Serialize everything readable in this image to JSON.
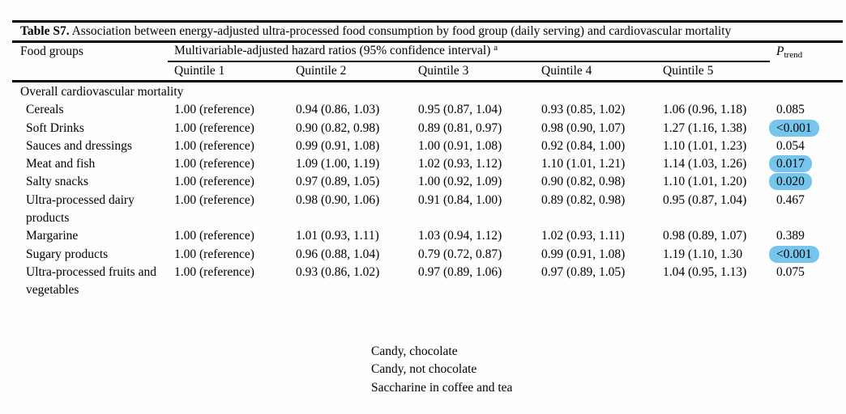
{
  "table": {
    "title_bold": "Table S7.",
    "title_rest": " Association between energy-adjusted ultra-processed food consumption by food group (daily serving) and cardiovascular mortality",
    "food_groups_header": "Food groups",
    "span_header": "Multivariable-adjusted hazard ratios (95% confidence interval)",
    "span_header_footnote_mark": "a",
    "p_label": "P",
    "p_sub": "trend",
    "quintiles": [
      "Quintile 1",
      "Quintile 2",
      "Quintile 3",
      "Quintile 4",
      "Quintile 5"
    ],
    "section": "Overall cardiovascular mortality",
    "highlight_color": "#76c5ec",
    "rows": [
      {
        "name": "Cereals",
        "values": [
          "1.00 (reference)",
          "0.94 (0.86, 1.03)",
          "0.95 (0.87, 1.04)",
          "0.93 (0.85, 1.02)",
          "1.06 (0.96, 1.18)"
        ],
        "p": "0.085",
        "highlighted": false
      },
      {
        "name": "Soft Drinks",
        "values": [
          "1.00 (reference)",
          "0.90 (0.82, 0.98)",
          "0.89 (0.81, 0.97)",
          "0.98 (0.90, 1.07)",
          "1.27 (1.16, 1.38)"
        ],
        "p": "<0.001",
        "highlighted": true
      },
      {
        "name": "Sauces and dressings",
        "values": [
          "1.00 (reference)",
          "0.99 (0.91, 1.08)",
          "1.00 (0.91, 1.08)",
          "0.92 (0.84, 1.00)",
          "1.10 (1.01, 1.23)"
        ],
        "p": "0.054",
        "highlighted": false
      },
      {
        "name": "Meat and fish",
        "values": [
          "1.00 (reference)",
          "1.09 (1.00, 1.19)",
          "1.02 (0.93, 1.12)",
          "1.10 (1.01, 1.21)",
          "1.14 (1.03, 1.26)"
        ],
        "p": "0.017",
        "highlighted": true
      },
      {
        "name": "Salty snacks",
        "values": [
          "1.00 (reference)",
          "0.97 (0.89, 1.05)",
          "1.00 (0.92, 1.09)",
          "0.90 (0.82, 0.98)",
          "1.10 (1.01, 1.20)"
        ],
        "p": "0.020",
        "highlighted": true
      },
      {
        "name": "Ultra-processed dairy products",
        "values": [
          "1.00 (reference)",
          "0.98 (0.90, 1.06)",
          "0.91 (0.84, 1.00)",
          "0.89 (0.82, 0.98)",
          "0.95 (0.87, 1.04)"
        ],
        "p": "0.467",
        "highlighted": false
      },
      {
        "name": "Margarine",
        "values": [
          "1.00 (reference)",
          "1.01 (0.93, 1.11)",
          "1.03 (0.94, 1.12)",
          "1.02 (0.93, 1.11)",
          "0.98 (0.89, 1.07)"
        ],
        "p": "0.389",
        "highlighted": false
      },
      {
        "name": "Sugary products",
        "values": [
          "1.00 (reference)",
          "0.96 (0.88, 1.04)",
          "0.79 (0.72, 0.87)",
          "0.99 (0.91, 1.08)",
          "1.19 (1.10, 1.30"
        ],
        "p": "<0.001",
        "highlighted": true
      },
      {
        "name": "Ultra-processed fruits and vegetables",
        "values": [
          "1.00 (reference)",
          "0.93 (0.86, 1.02)",
          "0.97 (0.89, 1.06)",
          "0.97 (0.89, 1.05)",
          "1.04 (0.95, 1.13)"
        ],
        "p": "0.075",
        "highlighted": false
      }
    ]
  },
  "footnotes": {
    "lines": [
      "Candy, chocolate",
      "Candy, not chocolate",
      "Saccharine in coffee and tea"
    ]
  }
}
